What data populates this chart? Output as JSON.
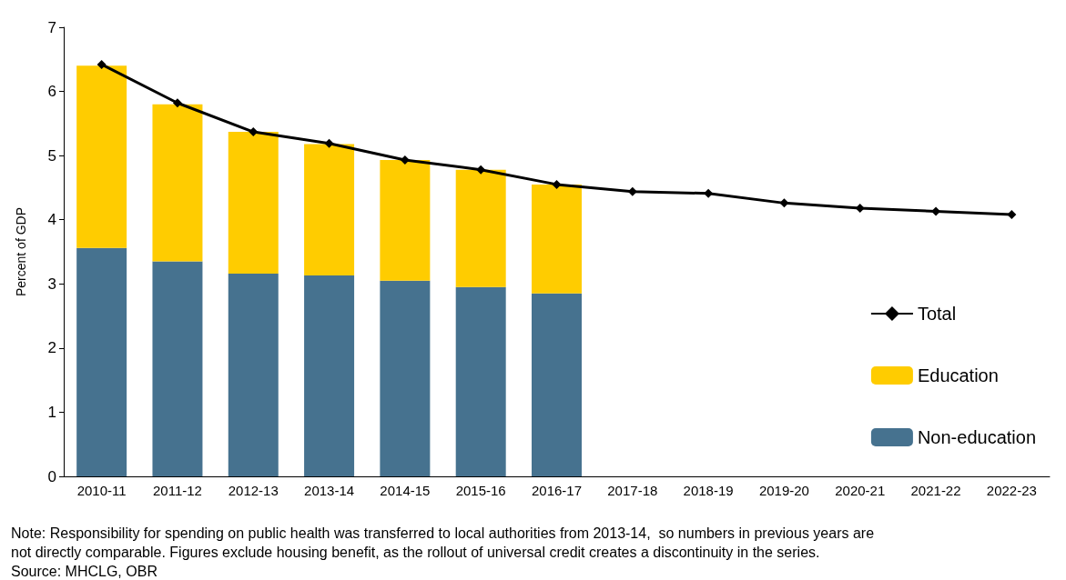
{
  "chart_data": {
    "type": "bar",
    "stacked": true,
    "ylabel": "Percent of GDP",
    "categories": [
      "2010-11",
      "2011-12",
      "2012-13",
      "2013-14",
      "2014-15",
      "2015-16",
      "2016-17",
      "2017-18",
      "2018-19",
      "2019-20",
      "2020-21",
      "2021-22",
      "2022-23"
    ],
    "series": [
      {
        "name": "Non-education",
        "color": "#46728f",
        "values": [
          3.56,
          3.35,
          3.16,
          3.13,
          3.05,
          2.95,
          2.85,
          null,
          null,
          null,
          null,
          null,
          null
        ]
      },
      {
        "name": "Education",
        "color": "#ffcc00",
        "values": [
          2.84,
          2.45,
          2.21,
          2.05,
          1.88,
          1.83,
          1.7,
          null,
          null,
          null,
          null,
          null,
          null
        ]
      },
      {
        "name": "Total",
        "type": "line",
        "color": "#000000",
        "marker": "diamond",
        "values": [
          6.42,
          5.82,
          5.37,
          5.19,
          4.93,
          4.78,
          4.55,
          4.44,
          4.41,
          4.26,
          4.18,
          4.13,
          4.08
        ]
      }
    ],
    "ylim": [
      0,
      7
    ],
    "yticks": [
      0,
      1,
      2,
      3,
      4,
      5,
      6,
      7
    ],
    "grid": false,
    "legend": "right",
    "annotations": [
      "Note: Responsibility for spending on public health was transferred to local authorities from 2013-14,  so numbers in previous years are",
      "not directly comparable. Figures exclude housing benefit, as the rollout of universal credit creates a discontinuity in the series.",
      "Source: MHCLG, OBR"
    ]
  }
}
